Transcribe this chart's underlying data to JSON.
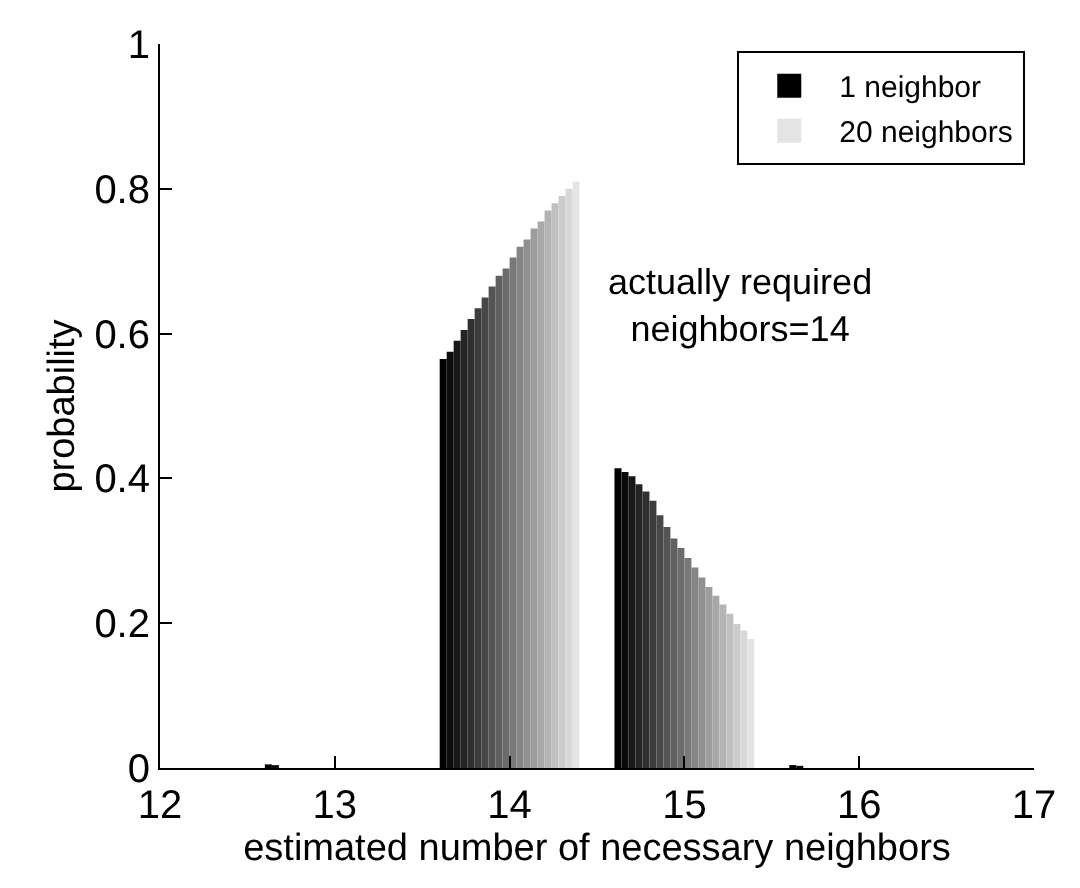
{
  "chart_data": {
    "type": "bar",
    "xlabel": "estimated number of necessary neighbors",
    "ylabel": "probability",
    "x": [
      12,
      13,
      14,
      15,
      16,
      17
    ],
    "xlim": [
      12,
      17
    ],
    "xticks": [
      12,
      13,
      14,
      15,
      16,
      17
    ],
    "ylim": [
      0,
      1
    ],
    "yticks": [
      0,
      0.2,
      0.4,
      0.6,
      0.8,
      1
    ],
    "grid": false,
    "legend": "top right",
    "annotations": [
      "actually required\nneighbors=14"
    ],
    "series": [
      {
        "name": "1 neighbor",
        "color": "#000000",
        "values": [
          0,
          0.005,
          0.565,
          0.414,
          0.004,
          0
        ]
      },
      {
        "color": "#0c0c0c",
        "values": [
          0,
          0.004,
          0.575,
          0.409,
          0.003,
          0
        ]
      },
      {
        "color": "#181818",
        "values": [
          0,
          0,
          0.59,
          0.403,
          0,
          0
        ]
      },
      {
        "color": "#242424",
        "values": [
          0,
          0,
          0.605,
          0.392,
          0,
          0
        ]
      },
      {
        "color": "#303030",
        "values": [
          0,
          0,
          0.62,
          0.382,
          0,
          0
        ]
      },
      {
        "color": "#3c3c3c",
        "values": [
          0,
          0,
          0.635,
          0.369,
          0,
          0
        ]
      },
      {
        "color": "#484848",
        "values": [
          0,
          0,
          0.65,
          0.349,
          0,
          0
        ]
      },
      {
        "color": "#545454",
        "values": [
          0,
          0,
          0.665,
          0.333,
          0,
          0
        ]
      },
      {
        "color": "#606060",
        "values": [
          0,
          0,
          0.68,
          0.317,
          0,
          0
        ]
      },
      {
        "color": "#6c6c6c",
        "values": [
          0,
          0,
          0.69,
          0.304,
          0,
          0
        ]
      },
      {
        "color": "#787878",
        "values": [
          0,
          0,
          0.705,
          0.29,
          0,
          0
        ]
      },
      {
        "color": "#848484",
        "values": [
          0,
          0,
          0.72,
          0.277,
          0,
          0
        ]
      },
      {
        "color": "#909090",
        "values": [
          0,
          0,
          0.73,
          0.263,
          0,
          0
        ]
      },
      {
        "color": "#9c9c9c",
        "values": [
          0,
          0,
          0.745,
          0.25,
          0,
          0
        ]
      },
      {
        "color": "#a8a8a8",
        "values": [
          0,
          0,
          0.755,
          0.238,
          0,
          0
        ]
      },
      {
        "color": "#b4b4b4",
        "values": [
          0,
          0,
          0.77,
          0.226,
          0,
          0
        ]
      },
      {
        "color": "#c0c0c0",
        "values": [
          0,
          0,
          0.78,
          0.213,
          0,
          0
        ]
      },
      {
        "color": "#cccccc",
        "values": [
          0,
          0,
          0.79,
          0.199,
          0,
          0
        ]
      },
      {
        "color": "#d8d8d8",
        "values": [
          0,
          0,
          0.8,
          0.19,
          0,
          0
        ]
      },
      {
        "name": "20 neighbors",
        "color": "#e4e4e4",
        "values": [
          0,
          0,
          0.81,
          0.178,
          0,
          0
        ]
      }
    ]
  }
}
